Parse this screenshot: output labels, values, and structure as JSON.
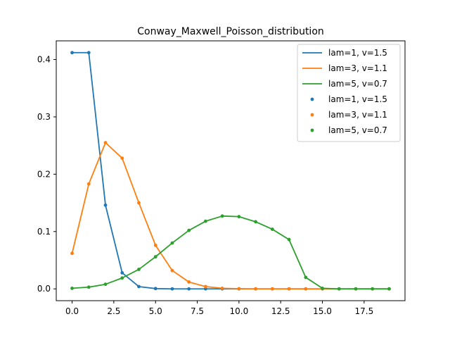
{
  "chart_data": {
    "type": "line",
    "title": "Conway_Maxwell_Poisson_distribution",
    "xlabel": "",
    "ylabel": "",
    "xlim": [
      -0.95,
      19.95
    ],
    "ylim": [
      -0.0206,
      0.4326
    ],
    "xticks": [
      0,
      2.5,
      5,
      7.5,
      10,
      12.5,
      15,
      17.5
    ],
    "xtick_labels": [
      "0.0",
      "2.5",
      "5.0",
      "7.5",
      "10.0",
      "12.5",
      "15.0",
      "17.5"
    ],
    "yticks": [
      0,
      0.1,
      0.2,
      0.3,
      0.4
    ],
    "ytick_labels": [
      "0.0",
      "0.1",
      "0.2",
      "0.3",
      "0.4"
    ],
    "grid": false,
    "legend_position": "top-right",
    "x": [
      0,
      1,
      2,
      3,
      4,
      5,
      6,
      7,
      8,
      9,
      10,
      11,
      12,
      13,
      14,
      15,
      16,
      17,
      18,
      19
    ],
    "series": [
      {
        "name": "lam=1, v=1.5",
        "color": "#1f77b4",
        "values": [
          0.412,
          0.412,
          0.146,
          0.028,
          0.004,
          0.0005,
          0,
          0,
          0,
          0,
          0,
          0,
          0,
          0,
          0,
          0,
          0,
          0,
          0,
          0
        ]
      },
      {
        "name": "lam=3, v=1.1",
        "color": "#ff7f0e",
        "values": [
          0.062,
          0.183,
          0.255,
          0.228,
          0.15,
          0.076,
          0.032,
          0.012,
          0.004,
          0.001,
          0.0003,
          0,
          0,
          0,
          0,
          0,
          0,
          0,
          0,
          0
        ]
      },
      {
        "name": "lam=5, v=0.7",
        "color": "#2ca02c",
        "values": [
          0.001,
          0.003,
          0.008,
          0.019,
          0.034,
          0.056,
          0.08,
          0.102,
          0.118,
          0.127,
          0.126,
          0.117,
          0.104,
          0.086,
          0.02,
          0.001,
          0,
          0,
          0,
          0
        ]
      }
    ],
    "legend_entries": [
      {
        "label": "lam=1, v=1.5",
        "kind": "line",
        "color": "#1f77b4"
      },
      {
        "label": "lam=3, v=1.1",
        "kind": "line",
        "color": "#ff7f0e"
      },
      {
        "label": "lam=5, v=0.7",
        "kind": "line",
        "color": "#2ca02c"
      },
      {
        "label": "lam=1, v=1.5",
        "kind": "marker",
        "color": "#1f77b4"
      },
      {
        "label": "lam=3, v=1.1",
        "kind": "marker",
        "color": "#ff7f0e"
      },
      {
        "label": "lam=5, v=0.7",
        "kind": "marker",
        "color": "#2ca02c"
      }
    ]
  }
}
